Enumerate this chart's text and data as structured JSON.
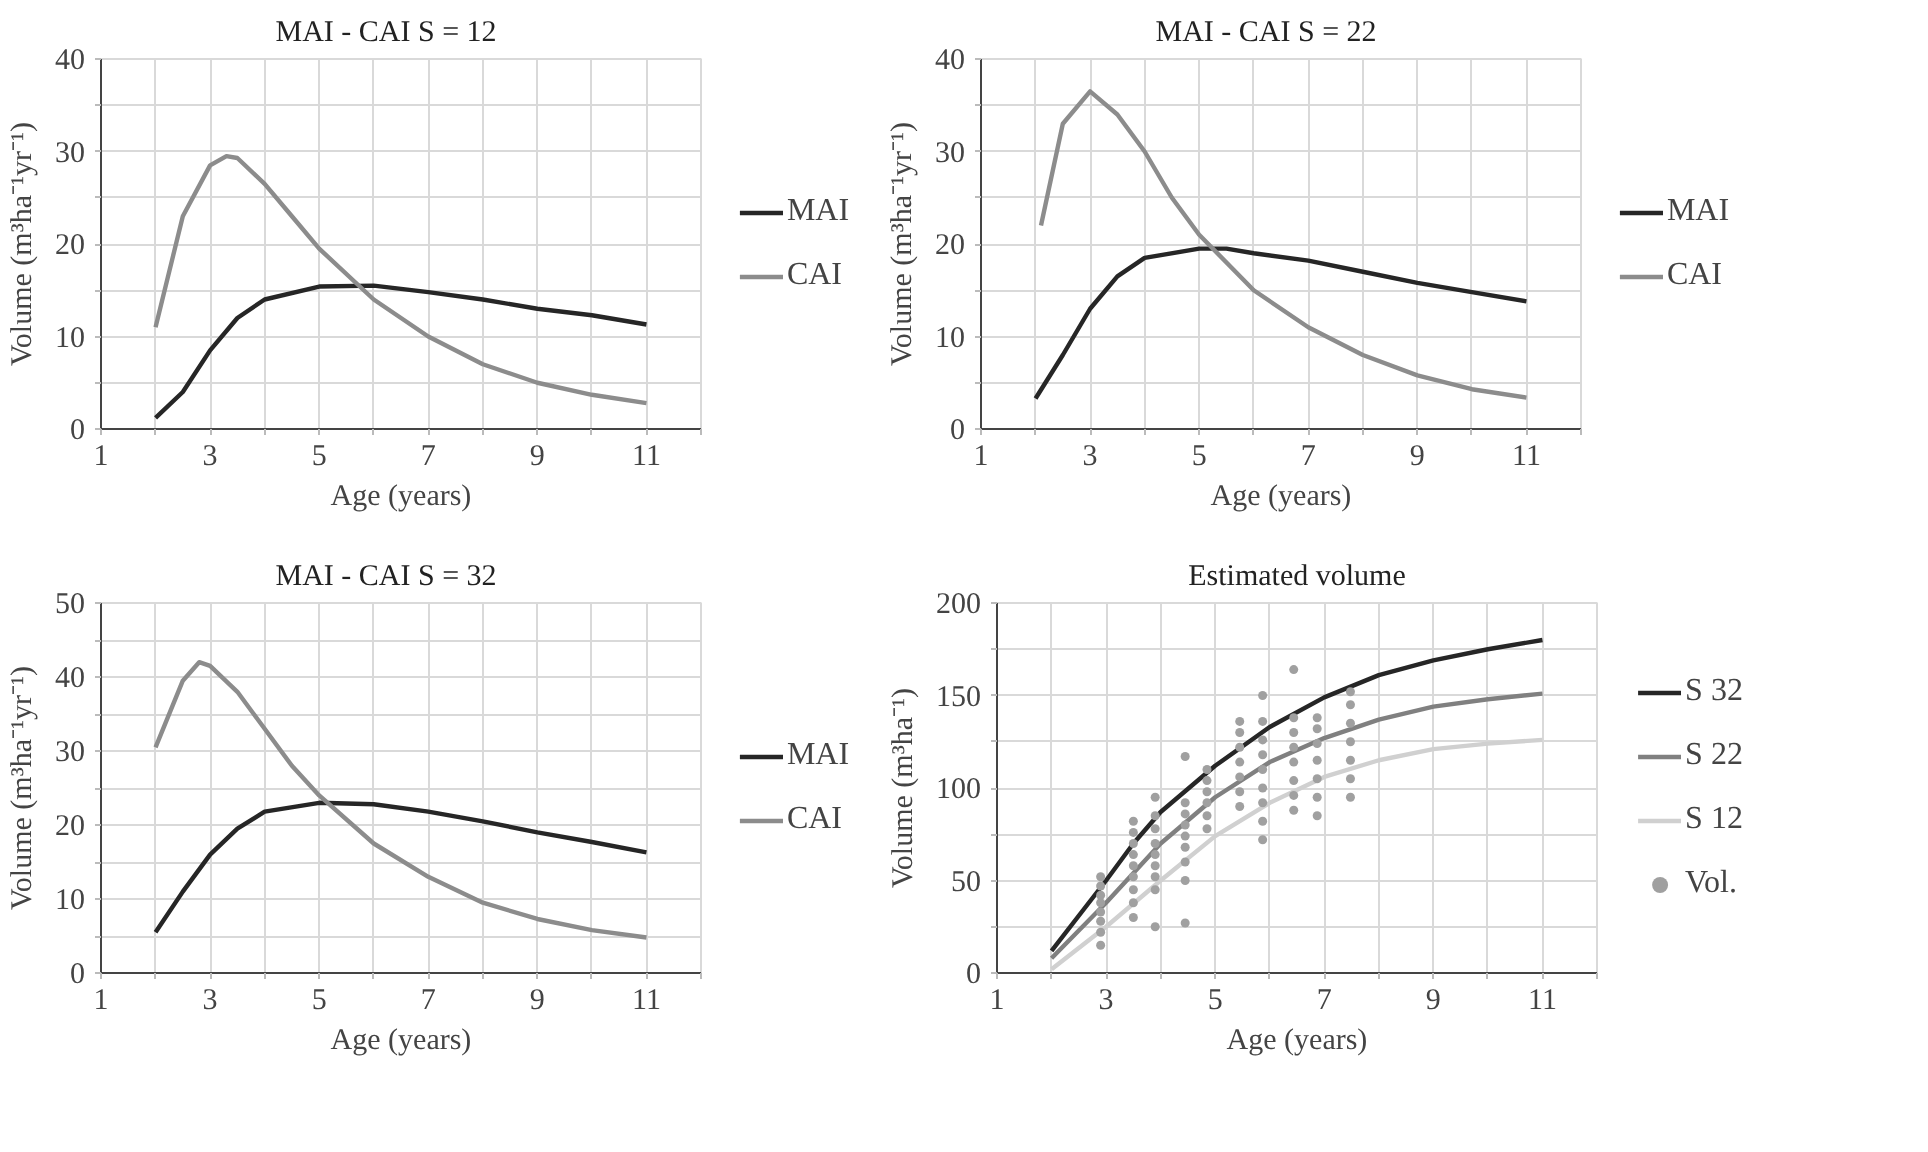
{
  "chart_data": [
    {
      "type": "line",
      "title": "MAI - CAI     S = 12",
      "xlabel": "Age (years)",
      "ylabel": "Volume (m³ha⁻¹yr⁻¹)",
      "xlim": [
        1,
        12
      ],
      "ylim": [
        0,
        40
      ],
      "xticks": [
        1,
        {
          "value": 2,
          "label": null
        },
        3,
        {
          "value": 4,
          "label": null
        },
        5,
        {
          "value": 6,
          "label": null
        },
        7,
        {
          "value": 8,
          "label": null
        },
        9,
        {
          "value": 10,
          "label": null
        },
        11,
        {
          "value": 12,
          "label": null
        }
      ],
      "yticks": [
        0,
        {
          "value": 5,
          "label": null
        },
        10,
        {
          "value": 15,
          "label": null
        },
        20,
        {
          "value": 25,
          "label": null
        },
        30,
        {
          "value": 35,
          "label": null
        },
        40
      ],
      "grid": true,
      "legend": "right",
      "line_style": "solid",
      "marker": "none",
      "series": [
        {
          "name": "MAI",
          "color": "#262626",
          "x": [
            2,
            2.5,
            3,
            3.5,
            4,
            5,
            6,
            7,
            8,
            9,
            10,
            11
          ],
          "values": [
            1.2,
            4,
            8.5,
            12,
            14,
            15.4,
            15.5,
            14.8,
            14,
            13,
            12.3,
            11.3
          ]
        },
        {
          "name": "CAI",
          "color": "#8c8c8c",
          "x": [
            2,
            2.5,
            3,
            3.3,
            3.5,
            4,
            4.5,
            5,
            6,
            7,
            8,
            9,
            10,
            11
          ],
          "values": [
            11,
            23,
            28.5,
            29.5,
            29.3,
            26.5,
            23,
            19.5,
            14,
            10,
            7,
            5,
            3.7,
            2.8
          ]
        }
      ]
    },
    {
      "type": "line",
      "title": "MAI - CAI     S = 22",
      "xlabel": "Age (years)",
      "ylabel": "Volume (m³ha⁻¹yr⁻¹)",
      "xlim": [
        1,
        12
      ],
      "ylim": [
        0,
        40
      ],
      "xticks": [
        1,
        {
          "value": 2,
          "label": null
        },
        3,
        {
          "value": 4,
          "label": null
        },
        5,
        {
          "value": 6,
          "label": null
        },
        7,
        {
          "value": 8,
          "label": null
        },
        9,
        {
          "value": 10,
          "label": null
        },
        11,
        {
          "value": 12,
          "label": null
        }
      ],
      "yticks": [
        0,
        {
          "value": 5,
          "label": null
        },
        10,
        {
          "value": 15,
          "label": null
        },
        20,
        {
          "value": 25,
          "label": null
        },
        30,
        {
          "value": 35,
          "label": null
        },
        40
      ],
      "grid": true,
      "legend": "right",
      "line_style": "solid",
      "marker": "none",
      "series": [
        {
          "name": "MAI",
          "color": "#262626",
          "x": [
            2,
            2.5,
            3,
            3.5,
            4,
            5,
            5.5,
            6,
            7,
            8,
            9,
            10,
            11
          ],
          "values": [
            3.3,
            8,
            13,
            16.5,
            18.5,
            19.5,
            19.5,
            19,
            18.2,
            17,
            15.8,
            14.8,
            13.8
          ]
        },
        {
          "name": "CAI",
          "color": "#8c8c8c",
          "x": [
            2.1,
            2.5,
            3,
            3.5,
            4,
            4.5,
            5,
            6,
            7,
            8,
            9,
            10,
            11
          ],
          "values": [
            22,
            33,
            36.5,
            34,
            30,
            25,
            21,
            15,
            11,
            8,
            5.8,
            4.3,
            3.4
          ]
        }
      ]
    },
    {
      "type": "line",
      "title": "MAI - CAI     S = 32",
      "xlabel": "Age (years)",
      "ylabel": "Volume (m³ha⁻¹yr⁻¹)",
      "xlim": [
        1,
        12
      ],
      "ylim": [
        0,
        50
      ],
      "xticks": [
        1,
        {
          "value": 2,
          "label": null
        },
        3,
        {
          "value": 4,
          "label": null
        },
        5,
        {
          "value": 6,
          "label": null
        },
        7,
        {
          "value": 8,
          "label": null
        },
        9,
        {
          "value": 10,
          "label": null
        },
        11,
        {
          "value": 12,
          "label": null
        }
      ],
      "yticks": [
        0,
        {
          "value": 5,
          "label": null
        },
        10,
        {
          "value": 15,
          "label": null
        },
        20,
        {
          "value": 25,
          "label": null
        },
        30,
        {
          "value": 35,
          "label": null
        },
        40,
        {
          "value": 45,
          "label": null
        },
        50
      ],
      "grid": true,
      "legend": "right",
      "line_style": "solid",
      "marker": "none",
      "series": [
        {
          "name": "MAI",
          "color": "#262626",
          "x": [
            2,
            2.5,
            3,
            3.5,
            4,
            5,
            6,
            7,
            8,
            9,
            10,
            11
          ],
          "values": [
            5.5,
            11,
            16,
            19.5,
            21.8,
            23,
            22.8,
            21.8,
            20.5,
            19,
            17.7,
            16.3
          ]
        },
        {
          "name": "CAI",
          "color": "#8c8c8c",
          "x": [
            2,
            2.5,
            2.8,
            3,
            3.5,
            4,
            4.5,
            5,
            6,
            7,
            8,
            9,
            10,
            11
          ],
          "values": [
            30.5,
            39.5,
            42,
            41.5,
            38,
            33,
            28,
            24,
            17.5,
            13,
            9.5,
            7.3,
            5.8,
            4.8
          ]
        }
      ]
    },
    {
      "type": "line",
      "title": "Estimated volume",
      "xlabel": "Age (years)",
      "ylabel": "Volume (m³ha⁻¹)",
      "xlim": [
        1,
        12
      ],
      "ylim": [
        0,
        200
      ],
      "xticks": [
        1,
        {
          "value": 2,
          "label": null
        },
        3,
        {
          "value": 4,
          "label": null
        },
        5,
        {
          "value": 6,
          "label": null
        },
        7,
        {
          "value": 8,
          "label": null
        },
        9,
        {
          "value": 10,
          "label": null
        },
        11,
        {
          "value": 12,
          "label": null
        }
      ],
      "yticks": [
        0,
        {
          "value": 25,
          "label": null
        },
        50,
        {
          "value": 75,
          "label": null
        },
        100,
        {
          "value": 125,
          "label": null
        },
        150,
        {
          "value": 175,
          "label": null
        },
        200
      ],
      "grid": true,
      "legend": "right",
      "line_style": "solid",
      "marker": "none",
      "series": [
        {
          "name": "S 32",
          "color": "#262626",
          "x": [
            2,
            3,
            3.5,
            4,
            5,
            6,
            7,
            8,
            9,
            10,
            11
          ],
          "values": [
            12,
            50,
            70,
            87,
            112,
            133,
            149,
            161,
            169,
            175,
            180
          ]
        },
        {
          "name": "S 22",
          "color": "#808080",
          "x": [
            2,
            3,
            4,
            5,
            6,
            7,
            8,
            9,
            10,
            11
          ],
          "values": [
            8,
            38,
            70,
            95,
            114,
            127,
            137,
            144,
            148,
            151
          ]
        },
        {
          "name": "S 12",
          "color": "#d0d0d0",
          "x": [
            2,
            3,
            4,
            5,
            6,
            7,
            8,
            9,
            10,
            11
          ],
          "values": [
            2,
            25,
            50,
            74,
            92,
            106,
            115,
            121,
            124,
            126
          ]
        },
        {
          "name": "Vol.",
          "type": "scatter",
          "marker": "circle",
          "color": "#a0a0a0",
          "x": [
            2.9,
            2.9,
            2.9,
            2.9,
            2.9,
            2.9,
            2.9,
            2.9,
            3.5,
            3.5,
            3.5,
            3.5,
            3.5,
            3.5,
            3.5,
            3.5,
            3.5,
            3.9,
            3.9,
            3.9,
            3.9,
            3.9,
            3.9,
            3.9,
            3.9,
            3.9,
            4.45,
            4.45,
            4.45,
            4.45,
            4.45,
            4.45,
            4.45,
            4.45,
            4.45,
            4.85,
            4.85,
            4.85,
            4.85,
            4.85,
            4.85,
            5.45,
            5.45,
            5.45,
            5.45,
            5.45,
            5.45,
            5.45,
            5.87,
            5.87,
            5.87,
            5.87,
            5.87,
            5.87,
            5.87,
            5.87,
            5.87,
            6.44,
            6.44,
            6.44,
            6.44,
            6.44,
            6.44,
            6.44,
            6.44,
            6.87,
            6.87,
            6.87,
            6.87,
            6.87,
            6.87,
            6.87,
            7.48,
            7.48,
            7.48,
            7.48,
            7.48,
            7.48,
            7.48
          ],
          "values": [
            15,
            22,
            28,
            33,
            38,
            42,
            47,
            52,
            30,
            38,
            45,
            52,
            58,
            64,
            70,
            76,
            82,
            25,
            45,
            52,
            58,
            64,
            70,
            78,
            85,
            95,
            27,
            50,
            60,
            68,
            74,
            80,
            86,
            92,
            117,
            78,
            85,
            92,
            98,
            104,
            110,
            90,
            98,
            106,
            114,
            122,
            130,
            136,
            72,
            82,
            92,
            100,
            110,
            118,
            126,
            136,
            150,
            88,
            96,
            104,
            114,
            122,
            130,
            138,
            164,
            85,
            95,
            105,
            115,
            124,
            132,
            138,
            95,
            105,
            115,
            125,
            135,
            145,
            152
          ]
        }
      ]
    }
  ]
}
